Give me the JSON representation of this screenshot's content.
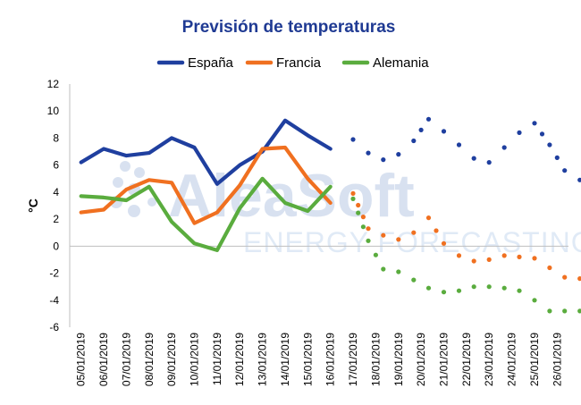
{
  "watermark": {
    "brand": "AleaSoft",
    "tagline": "ENERGY FORECASTING"
  },
  "chart_data": {
    "type": "line",
    "title": "Previsión de temperaturas",
    "ylabel": "°C",
    "xlabel": "",
    "ylim": [
      -6,
      12
    ],
    "yticks": [
      -6,
      -4,
      -2,
      0,
      2,
      4,
      6,
      8,
      10,
      12
    ],
    "grid": false,
    "legend_position": "top",
    "x": [
      "05/01/2019",
      "06/01/2019",
      "07/01/2019",
      "08/01/2019",
      "09/01/2019",
      "10/01/2019",
      "11/01/2019",
      "12/01/2019",
      "13/01/2019",
      "14/01/2019",
      "15/01/2019",
      "16/01/2019",
      "17/01/2019",
      "18/01/2019",
      "19/01/2019",
      "20/01/2019",
      "21/01/2019",
      "22/01/2019",
      "23/01/2019",
      "24/01/2019",
      "25/01/2019",
      "26/01/2019"
    ],
    "series": [
      {
        "name": "España",
        "color": "#1f3f9f",
        "observed": [
          [
            0,
            6.2
          ],
          [
            1,
            7.2
          ],
          [
            2,
            6.7
          ],
          [
            3,
            6.9
          ],
          [
            4,
            8.0
          ],
          [
            5,
            7.3
          ],
          [
            6,
            4.6
          ],
          [
            7,
            6.0
          ],
          [
            8,
            7.0
          ],
          [
            9,
            9.3
          ],
          [
            10,
            8.2
          ],
          [
            11,
            7.2
          ]
        ],
        "forecast": [
          [
            12,
            7.9
          ],
          [
            12.67,
            6.9
          ],
          [
            13.33,
            6.4
          ],
          [
            14,
            6.8
          ],
          [
            14.67,
            7.8
          ],
          [
            15.33,
            9.4
          ],
          [
            16,
            8.5
          ],
          [
            16.67,
            7.5
          ],
          [
            17.33,
            6.5
          ],
          [
            18,
            6.2
          ],
          [
            18.67,
            7.3
          ],
          [
            19.33,
            8.4
          ],
          [
            20,
            9.1
          ],
          [
            20.67,
            7.5
          ],
          [
            21.33,
            5.6
          ],
          [
            22,
            4.9
          ]
        ]
      },
      {
        "name": "Francia",
        "color": "#f07020",
        "observed": [
          [
            0,
            2.5
          ],
          [
            1,
            2.7
          ],
          [
            2,
            4.2
          ],
          [
            3,
            4.9
          ],
          [
            4,
            4.7
          ],
          [
            5,
            1.7
          ],
          [
            6,
            2.5
          ],
          [
            7,
            4.5
          ],
          [
            8,
            7.2
          ],
          [
            9,
            7.3
          ],
          [
            10,
            5.0
          ],
          [
            11,
            3.2
          ]
        ],
        "forecast": [
          [
            12,
            3.9
          ],
          [
            12.67,
            1.3
          ],
          [
            13.33,
            0.8
          ],
          [
            14,
            0.5
          ],
          [
            14.67,
            1.0
          ],
          [
            15.33,
            2.1
          ],
          [
            16,
            0.2
          ],
          [
            16.67,
            -0.7
          ],
          [
            17.33,
            -1.1
          ],
          [
            18,
            -1.0
          ],
          [
            18.67,
            -0.7
          ],
          [
            19.33,
            -0.8
          ],
          [
            20,
            -0.9
          ],
          [
            20.67,
            -1.6
          ],
          [
            21.33,
            -2.3
          ],
          [
            22,
            -2.4
          ]
        ]
      },
      {
        "name": "Alemania",
        "color": "#5aac3e",
        "observed": [
          [
            0,
            3.7
          ],
          [
            1,
            3.6
          ],
          [
            2,
            3.4
          ],
          [
            3,
            4.4
          ],
          [
            4,
            1.8
          ],
          [
            5,
            0.2
          ],
          [
            6,
            -0.3
          ],
          [
            7,
            2.8
          ],
          [
            8,
            5.0
          ],
          [
            9,
            3.2
          ],
          [
            10,
            2.6
          ],
          [
            11,
            4.4
          ]
        ],
        "forecast": [
          [
            12,
            3.5
          ],
          [
            12.67,
            0.4
          ],
          [
            13.33,
            -1.7
          ],
          [
            14,
            -1.9
          ],
          [
            14.67,
            -2.5
          ],
          [
            15.33,
            -3.1
          ],
          [
            16,
            -3.4
          ],
          [
            16.67,
            -3.3
          ],
          [
            17.33,
            -3.0
          ],
          [
            18,
            -3.0
          ],
          [
            18.67,
            -3.1
          ],
          [
            19.33,
            -3.3
          ],
          [
            20,
            -4.0
          ],
          [
            20.67,
            -4.8
          ],
          [
            21.33,
            -4.8
          ],
          [
            22,
            -4.8
          ]
        ]
      }
    ]
  }
}
